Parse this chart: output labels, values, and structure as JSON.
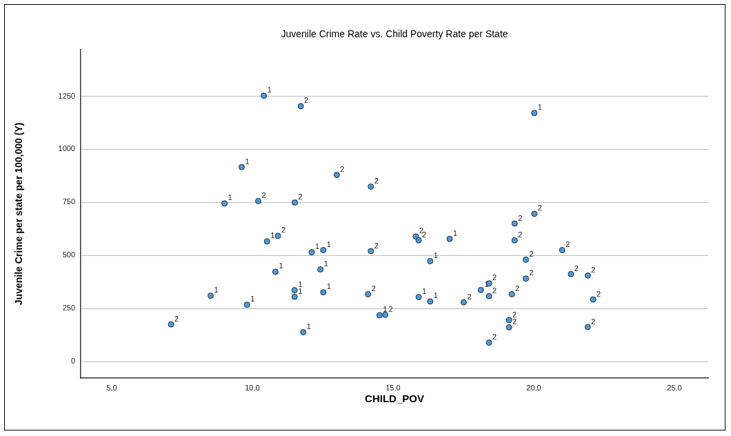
{
  "chart_data": {
    "type": "scatter",
    "title": "Juvenile Crime Rate vs. Child Poverty Rate per State",
    "xlabel": "CHILD_POV",
    "ylabel": "Juvenile Crime per state per 100,000 (Y)",
    "xlim": [
      3.9,
      26.2
    ],
    "xticks": [
      {
        "value": 5,
        "label": "5.0"
      },
      {
        "value": 10,
        "label": "10.0"
      },
      {
        "value": 15,
        "label": "15.0"
      },
      {
        "value": 20,
        "label": "20.0"
      },
      {
        "value": 25,
        "label": "25.0"
      }
    ],
    "ylim": [
      -78,
      1470
    ],
    "yticks": [
      0,
      250,
      500,
      750,
      1000,
      1250
    ],
    "grid": "y",
    "legend": false,
    "marker": "circle",
    "series": [
      {
        "name": "1",
        "color": "#4a9be0",
        "x": [
          10.41,
          9.62,
          9.01,
          10.52,
          10.82,
          11.5,
          11.5,
          8.52,
          9.81,
          12.11,
          12.52,
          12.42,
          12.52,
          11.81,
          14.52,
          16.32,
          17.01,
          15.91,
          16.32,
          18.12,
          20.02
        ],
        "values": [
          1252,
          916,
          745,
          566,
          423,
          336,
          305,
          310,
          267,
          515,
          525,
          434,
          326,
          138,
          218,
          473,
          578,
          304,
          283,
          337,
          1171
        ]
      },
      {
        "name": "2",
        "color": "#4a9be0",
        "x": [
          10.21,
          10.91,
          7.11,
          11.72,
          13.0,
          14.21,
          11.51,
          14.21,
          14.11,
          14.72,
          15.81,
          15.91,
          17.51,
          18.41,
          18.41,
          18.41,
          19.12,
          19.12,
          19.22,
          19.32,
          19.32,
          19.72,
          19.72,
          21.01,
          21.32,
          21.92,
          22.11,
          21.92,
          20.02
        ],
        "values": [
          756,
          592,
          175,
          1203,
          879,
          824,
          749,
          520,
          317,
          220,
          589,
          571,
          279,
          368,
          308,
          89,
          195,
          161,
          317,
          571,
          650,
          480,
          391,
          525,
          412,
          405,
          292,
          162,
          696
        ]
      }
    ]
  }
}
